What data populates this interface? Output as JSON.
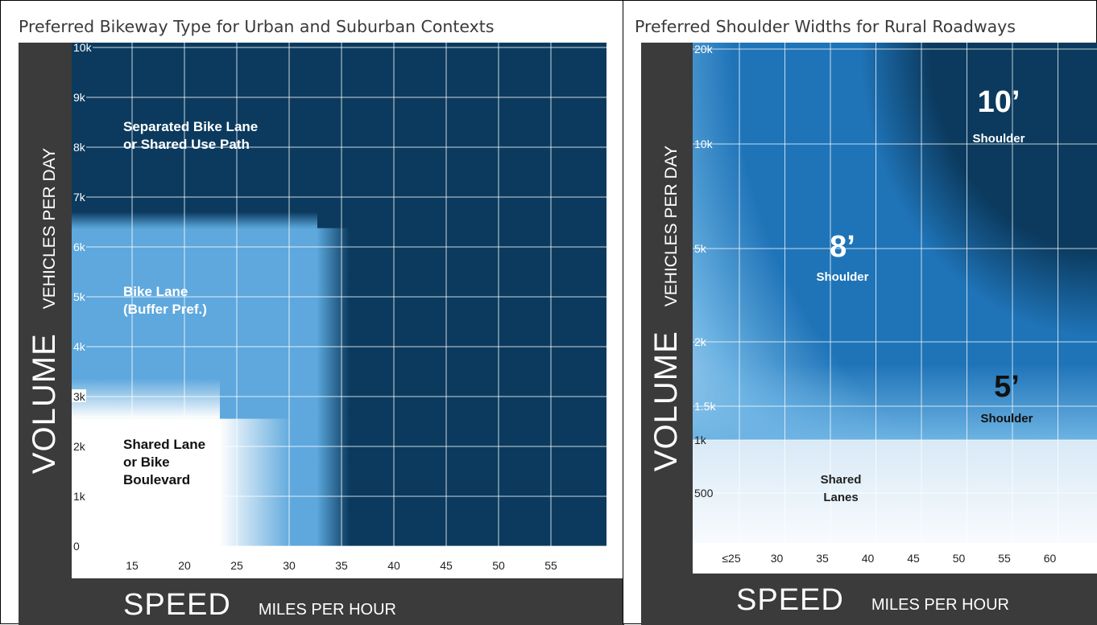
{
  "chart_data": [
    {
      "type": "heatmap",
      "title": "Preferred Bikeway Type for Urban and Suburban Contexts",
      "ylabel": "VOLUME",
      "ylabel_unit": "VEHICLES PER DAY",
      "xlabel": "SPEED",
      "xlabel_unit": "MILES PER HOUR",
      "x_ticks": [
        "15",
        "20",
        "25",
        "30",
        "35",
        "40",
        "45",
        "50",
        "55"
      ],
      "y_ticks": [
        "0",
        "1k",
        "2k",
        "3k",
        "4k",
        "5k",
        "6k",
        "7k",
        "8k",
        "9k",
        "10k"
      ],
      "xlim": [
        10,
        60
      ],
      "ylim": [
        0,
        10000
      ],
      "grid": true,
      "zones": [
        {
          "label_lines": [
            "Separated Bike Lane",
            "or Shared Use Path"
          ],
          "color": "#0b3a5e"
        },
        {
          "label_lines": [
            "Bike Lane",
            "(Buffer Pref.)"
          ],
          "color": "#5ea8dd"
        },
        {
          "label_lines": [
            "Shared Lane",
            "or Bike",
            "Boulevard"
          ],
          "color": "#ffffff"
        }
      ],
      "thresholds": {
        "shared_lane_max_speed": 25,
        "shared_lane_max_volume": 3000,
        "bike_lane_max_speed": 35,
        "bike_lane_max_volume": 6000
      }
    },
    {
      "type": "heatmap",
      "title": "Preferred Shoulder Widths for Rural Roadways",
      "ylabel": "VOLUME",
      "ylabel_unit": "VEHICLES PER DAY",
      "xlabel": "SPEED",
      "xlabel_unit": "MILES PER HOUR",
      "x_ticks": [
        "≤25",
        "30",
        "35",
        "40",
        "45",
        "50",
        "55",
        "60"
      ],
      "y_ticks": [
        "500",
        "1k",
        "1.5k",
        "2k",
        "5k",
        "10k",
        "20k"
      ],
      "grid": true,
      "zones": [
        {
          "big": "10’",
          "small": "Shoulder",
          "color": "#0b3a5e"
        },
        {
          "big": "8’",
          "small": "Shoulder",
          "color": "#1f74b8"
        },
        {
          "big": "5’",
          "small": "Shoulder",
          "color": "#6db3e3"
        },
        {
          "big": "",
          "small": "Shared Lanes",
          "label_lines": [
            "Shared",
            "Lanes"
          ],
          "color": "#eaf3fb"
        }
      ]
    }
  ]
}
